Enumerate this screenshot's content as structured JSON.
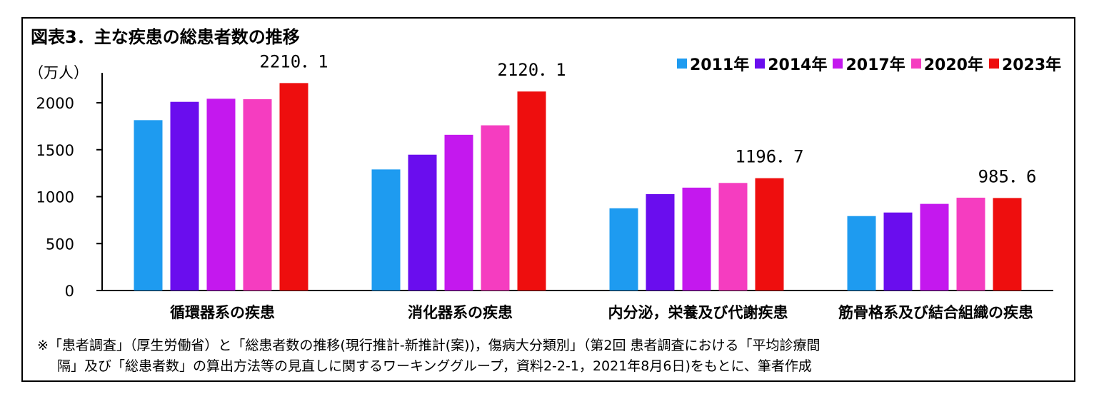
{
  "chart_data": {
    "type": "bar",
    "title": "図表3．主な疾患の総患者数の推移",
    "ylabel": "（万人）",
    "ylim": [
      0,
      2300
    ],
    "yticks": [
      0,
      500,
      1000,
      1500,
      2000
    ],
    "legend_position": "top-right",
    "grid": false,
    "categories": [
      "循環器系の疾患",
      "消化器系の疾患",
      "内分泌，栄養及び代謝疾患",
      "筋骨格系及び結合組織の疾患"
    ],
    "series": [
      {
        "name": "2011年",
        "color": "#1E9BF0",
        "values": [
          1815,
          1290,
          876,
          793
        ]
      },
      {
        "name": "2014年",
        "color": "#6A0DEE",
        "values": [
          2010,
          1447,
          1027,
          831
        ]
      },
      {
        "name": "2017年",
        "color": "#C418EE",
        "values": [
          2043,
          1659,
          1096,
          923
        ]
      },
      {
        "name": "2020年",
        "color": "#F53DC0",
        "values": [
          2038,
          1760,
          1146,
          989
        ]
      },
      {
        "name": "2023年",
        "color": "#EE0E0E",
        "values": [
          2210.1,
          2120.1,
          1196.7,
          985.6
        ]
      }
    ],
    "data_labels": [
      {
        "category_index": 0,
        "series_index": 4,
        "text": "2210．1"
      },
      {
        "category_index": 1,
        "series_index": 4,
        "text": "2120．1"
      },
      {
        "category_index": 2,
        "series_index": 4,
        "text": "1196．7"
      },
      {
        "category_index": 3,
        "series_index": 4,
        "text": "985．6"
      }
    ]
  },
  "note": {
    "line1": "※「患者調査」（厚生労働省）と「総患者数の推移(現行推計-新推計(案))，傷病大分類別」（第2回 患者調査における「平均診療間",
    "line2": "隔」及び「総患者数」の算出方法等の見直しに関するワーキンググループ，資料2-2-1，2021年8月6日)をもとに、筆者作成"
  }
}
